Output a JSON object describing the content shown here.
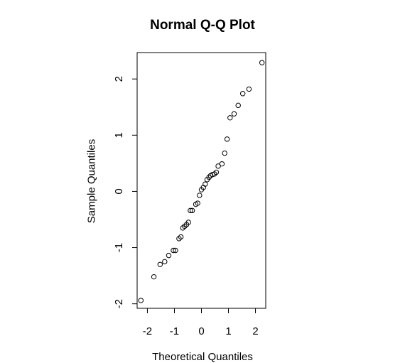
{
  "chart_data": {
    "type": "scatter",
    "title": "Normal Q-Q Plot",
    "xlabel": "Theoretical Quantiles",
    "ylabel": "Sample Quantiles",
    "xlim": [
      -2.38,
      2.38
    ],
    "ylim": [
      -2.08,
      2.47
    ],
    "x_ticks": [
      -2,
      -1,
      0,
      1,
      2
    ],
    "y_ticks": [
      -2,
      -1,
      0,
      1,
      2
    ],
    "x_tick_labels": [
      "-2",
      "-1",
      "0",
      "1",
      "2"
    ],
    "y_tick_labels": [
      "-2",
      "-1",
      "0",
      "1",
      "2"
    ],
    "grid": false,
    "marker": "open-circle",
    "points": [
      {
        "x": -2.24,
        "y": -1.94
      },
      {
        "x": -1.76,
        "y": -1.52
      },
      {
        "x": -1.53,
        "y": -1.3
      },
      {
        "x": -1.36,
        "y": -1.25
      },
      {
        "x": -1.21,
        "y": -1.14
      },
      {
        "x": -1.04,
        "y": -1.05
      },
      {
        "x": -0.96,
        "y": -1.05
      },
      {
        "x": -0.83,
        "y": -0.84
      },
      {
        "x": -0.76,
        "y": -0.81
      },
      {
        "x": -0.69,
        "y": -0.65
      },
      {
        "x": -0.62,
        "y": -0.62
      },
      {
        "x": -0.55,
        "y": -0.59
      },
      {
        "x": -0.48,
        "y": -0.55
      },
      {
        "x": -0.41,
        "y": -0.34
      },
      {
        "x": -0.34,
        "y": -0.34
      },
      {
        "x": -0.21,
        "y": -0.23
      },
      {
        "x": -0.14,
        "y": -0.21
      },
      {
        "x": -0.07,
        "y": -0.07
      },
      {
        "x": 0.0,
        "y": 0.03
      },
      {
        "x": 0.07,
        "y": 0.07
      },
      {
        "x": 0.14,
        "y": 0.13
      },
      {
        "x": 0.21,
        "y": 0.21
      },
      {
        "x": 0.28,
        "y": 0.25
      },
      {
        "x": 0.34,
        "y": 0.28
      },
      {
        "x": 0.41,
        "y": 0.3
      },
      {
        "x": 0.48,
        "y": 0.31
      },
      {
        "x": 0.55,
        "y": 0.34
      },
      {
        "x": 0.62,
        "y": 0.45
      },
      {
        "x": 0.76,
        "y": 0.49
      },
      {
        "x": 0.86,
        "y": 0.68
      },
      {
        "x": 0.95,
        "y": 0.93
      },
      {
        "x": 1.06,
        "y": 1.31
      },
      {
        "x": 1.21,
        "y": 1.38
      },
      {
        "x": 1.36,
        "y": 1.53
      },
      {
        "x": 1.53,
        "y": 1.74
      },
      {
        "x": 1.76,
        "y": 1.82
      },
      {
        "x": 2.24,
        "y": 2.29
      }
    ]
  }
}
